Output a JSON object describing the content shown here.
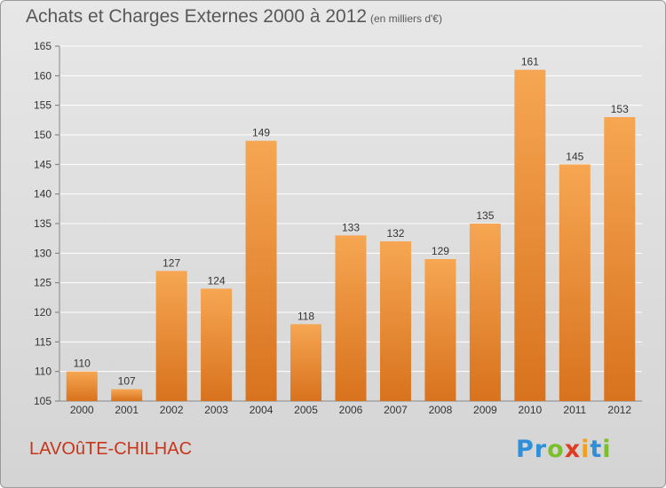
{
  "header": {
    "title": "Achats et Charges Externes 2000 à 2012",
    "subtitle": "(en milliers d'€)"
  },
  "footer": {
    "commune": "LAVOûTE-CHILHAC",
    "logo_letters": [
      {
        "char": "P",
        "color": "#2f8fd8"
      },
      {
        "char": "r",
        "color": "#2f8fd8"
      },
      {
        "char": "o",
        "color": "#7cbf2c"
      },
      {
        "char": "x",
        "color": "#e03c1f"
      },
      {
        "char": "i",
        "color": "#f0a020"
      },
      {
        "char": "t",
        "color": "#2f8fd8"
      },
      {
        "char": "i",
        "color": "#7cbf2c"
      }
    ]
  },
  "chart_data": {
    "type": "bar",
    "categories": [
      "2000",
      "2001",
      "2002",
      "2003",
      "2004",
      "2005",
      "2006",
      "2007",
      "2008",
      "2009",
      "2010",
      "2011",
      "2012"
    ],
    "values": [
      110,
      107,
      127,
      124,
      149,
      118,
      133,
      132,
      129,
      135,
      161,
      145,
      153
    ],
    "ylim": [
      105,
      165
    ],
    "yticks": [
      105,
      110,
      115,
      120,
      125,
      130,
      135,
      140,
      145,
      150,
      155,
      160,
      165
    ],
    "grid": true,
    "bar_color_top": "#f6a652",
    "bar_color_bottom": "#d8721e"
  }
}
